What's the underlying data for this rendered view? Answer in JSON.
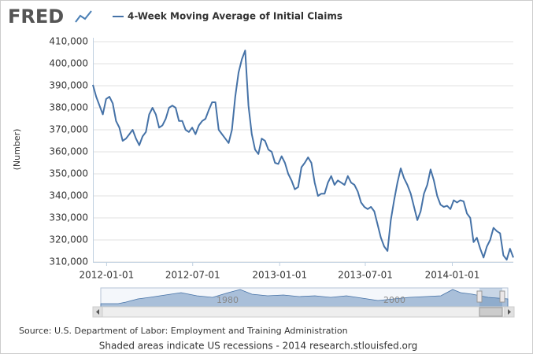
{
  "chart_data": {
    "type": "line",
    "logo": "FRED",
    "ylabel": "(Number)",
    "source": "Source: U.S. Department of Labor: Employment and Training Administration",
    "note": "Shaded areas indicate US recessions - 2014 research.stlouisfed.org",
    "navigator_labels": [
      "1980",
      "2000"
    ],
    "x": [
      "2011-12-03",
      "2011-12-10",
      "2011-12-17",
      "2011-12-24",
      "2011-12-31",
      "2012-01-07",
      "2012-01-14",
      "2012-01-21",
      "2012-01-28",
      "2012-02-04",
      "2012-02-11",
      "2012-02-18",
      "2012-02-25",
      "2012-03-03",
      "2012-03-10",
      "2012-03-17",
      "2012-03-24",
      "2012-03-31",
      "2012-04-07",
      "2012-04-14",
      "2012-04-21",
      "2012-04-28",
      "2012-05-05",
      "2012-05-12",
      "2012-05-19",
      "2012-05-26",
      "2012-06-02",
      "2012-06-09",
      "2012-06-16",
      "2012-06-23",
      "2012-06-30",
      "2012-07-07",
      "2012-07-14",
      "2012-07-21",
      "2012-07-28",
      "2012-08-04",
      "2012-08-11",
      "2012-08-18",
      "2012-08-25",
      "2012-09-01",
      "2012-09-08",
      "2012-09-15",
      "2012-09-22",
      "2012-09-29",
      "2012-10-06",
      "2012-10-13",
      "2012-10-20",
      "2012-10-27",
      "2012-11-03",
      "2012-11-10",
      "2012-11-17",
      "2012-11-24",
      "2012-12-01",
      "2012-12-08",
      "2012-12-15",
      "2012-12-22",
      "2012-12-29",
      "2013-01-05",
      "2013-01-12",
      "2013-01-19",
      "2013-01-26",
      "2013-02-02",
      "2013-02-09",
      "2013-02-16",
      "2013-02-23",
      "2013-03-02",
      "2013-03-09",
      "2013-03-16",
      "2013-03-23",
      "2013-03-30",
      "2013-04-06",
      "2013-04-13",
      "2013-04-20",
      "2013-04-27",
      "2013-05-04",
      "2013-05-11",
      "2013-05-18",
      "2013-05-25",
      "2013-06-01",
      "2013-06-08",
      "2013-06-15",
      "2013-06-22",
      "2013-06-29",
      "2013-07-06",
      "2013-07-13",
      "2013-07-20",
      "2013-07-27",
      "2013-08-03",
      "2013-08-10",
      "2013-08-17",
      "2013-08-24",
      "2013-08-31",
      "2013-09-07",
      "2013-09-14",
      "2013-09-21",
      "2013-09-28",
      "2013-10-05",
      "2013-10-12",
      "2013-10-19",
      "2013-10-26",
      "2013-11-02",
      "2013-11-09",
      "2013-11-16",
      "2013-11-23",
      "2013-11-30",
      "2013-12-07",
      "2013-12-14",
      "2013-12-21",
      "2013-12-28",
      "2014-01-04",
      "2014-01-11",
      "2014-01-18",
      "2014-01-25",
      "2014-02-01",
      "2014-02-08",
      "2014-02-15",
      "2014-02-22",
      "2014-03-01",
      "2014-03-08",
      "2014-03-15",
      "2014-03-22",
      "2014-03-29",
      "2014-04-05",
      "2014-04-12",
      "2014-04-19",
      "2014-04-26",
      "2014-05-03",
      "2014-05-10"
    ],
    "series": [
      {
        "name": "4-Week Moving Average of Initial Claims",
        "color": "#4572a7",
        "values": [
          390400,
          385000,
          381000,
          377000,
          384000,
          385000,
          382000,
          374000,
          371000,
          365000,
          366000,
          368000,
          370000,
          366000,
          363000,
          367000,
          369000,
          377000,
          380000,
          377000,
          371000,
          372000,
          375000,
          380000,
          381000,
          380000,
          374000,
          374000,
          370000,
          369000,
          371000,
          368000,
          372000,
          374000,
          375000,
          379000,
          382500,
          382500,
          370000,
          368000,
          366000,
          364000,
          370000,
          385000,
          396000,
          402000,
          406000,
          381000,
          368000,
          361000,
          359000,
          366000,
          365000,
          361000,
          360000,
          355000,
          354500,
          358000,
          355000,
          350000,
          347000,
          343000,
          344000,
          353000,
          355000,
          357500,
          355000,
          346000,
          340000,
          341000,
          341000,
          346000,
          349000,
          345000,
          347000,
          346000,
          345000,
          349000,
          346000,
          345000,
          342000,
          337000,
          335000,
          334000,
          335000,
          333000,
          327000,
          321000,
          317000,
          315000,
          329000,
          338000,
          346000,
          352500,
          348000,
          345000,
          341000,
          335000,
          329000,
          333000,
          341000,
          345000,
          352000,
          347000,
          340000,
          336000,
          335000,
          335500,
          334000,
          338000,
          337000,
          338000,
          337500,
          332000,
          330000,
          319000,
          321000,
          316000,
          312000,
          317000,
          320000,
          325500,
          324000,
          323000,
          313000,
          311000,
          316000,
          312000
        ]
      }
    ],
    "xlim": [
      "2011-12-03",
      "2014-05-10"
    ],
    "xticks": [
      "2012-01-01",
      "2012-07-01",
      "2013-01-01",
      "2013-07-01",
      "2014-01-01"
    ],
    "ylim": [
      310000,
      410000
    ],
    "yticks": [
      {
        "value": 310000,
        "label": "310,000"
      },
      {
        "value": 320000,
        "label": "320,000"
      },
      {
        "value": 330000,
        "label": "330,000"
      },
      {
        "value": 340000,
        "label": "340,000"
      },
      {
        "value": 350000,
        "label": "350,000"
      },
      {
        "value": 360000,
        "label": "360,000"
      },
      {
        "value": 370000,
        "label": "370,000"
      },
      {
        "value": 380000,
        "label": "380,000"
      },
      {
        "value": 390000,
        "label": "390,000"
      },
      {
        "value": 400000,
        "label": "400,000"
      },
      {
        "value": 410000,
        "label": "410,000"
      }
    ],
    "grid": true
  }
}
